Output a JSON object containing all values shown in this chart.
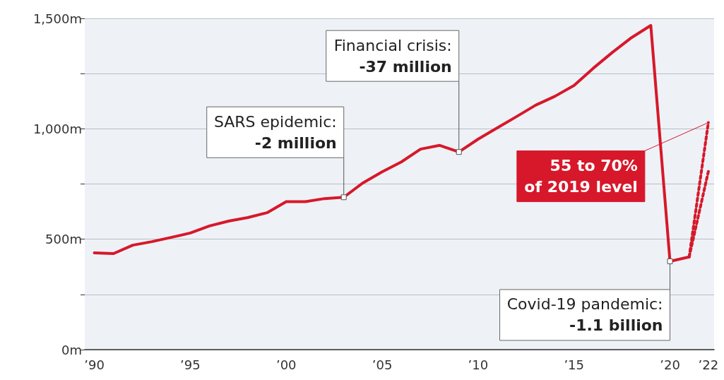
{
  "chart_data": {
    "type": "line",
    "series": [
      {
        "color": "#d7182a",
        "x": [
          1990,
          1991,
          1992,
          1993,
          1994,
          1995,
          1996,
          1997,
          1998,
          1999,
          2000,
          2001,
          2002,
          2003,
          2004,
          2005,
          2006,
          2007,
          2008,
          2009,
          2010,
          2011,
          2012,
          2013,
          2014,
          2015,
          2016,
          2017,
          2018,
          2019,
          2020,
          2021
        ],
        "values": [
          438,
          435,
          473,
          489,
          508,
          528,
          560,
          582,
          598,
          620,
          670,
          670,
          684,
          690,
          755,
          805,
          850,
          908,
          925,
          895,
          953,
          1004,
          1055,
          1107,
          1147,
          1196,
          1274,
          1346,
          1413,
          1468,
          400,
          420
        ]
      },
      {
        "color": "#d7182a",
        "line_style": "dotted",
        "x": [
          2021,
          2022
        ],
        "values": [
          420,
          1028
        ]
      },
      {
        "color": "#d7182a",
        "line_style": "dotted",
        "x": [
          2021,
          2022
        ],
        "values": [
          420,
          807
        ]
      }
    ],
    "xlim": [
      1989.5,
      2022.3
    ],
    "xticks": [
      {
        "value": 1990,
        "label": "’90"
      },
      {
        "value": 1995,
        "label": "’95"
      },
      {
        "value": 2000,
        "label": "’00"
      },
      {
        "value": 2005,
        "label": "’05"
      },
      {
        "value": 2010,
        "label": "’10"
      },
      {
        "value": 2015,
        "label": "’15"
      },
      {
        "value": 2020,
        "label": "’20"
      },
      {
        "value": 2022,
        "label": "’22"
      }
    ],
    "ylim": [
      0,
      1500
    ],
    "yticks": [
      {
        "value": 0,
        "label": "0m"
      },
      {
        "value": 250,
        "label": null
      },
      {
        "value": 500,
        "label": "500m"
      },
      {
        "value": 750,
        "label": null
      },
      {
        "value": 1000,
        "label": "1,000m"
      },
      {
        "value": 1250,
        "label": null
      },
      {
        "value": 1500,
        "label": "1,500m"
      }
    ],
    "grid": "y",
    "marker": "none",
    "line_style": "solid",
    "annotations": [
      {
        "text": "SARS epidemic:\n-2 million",
        "x": 2003,
        "y": 690
      },
      {
        "text": "Financial crisis:\n-37 million",
        "x": 2009,
        "y": 895
      },
      {
        "text": "Covid-19 pandemic:\n-1.1 billion",
        "x": 2020,
        "y": 400
      },
      {
        "text": "55 to 70%\nof 2019 level",
        "x": 2022,
        "y": 1028
      }
    ]
  }
}
